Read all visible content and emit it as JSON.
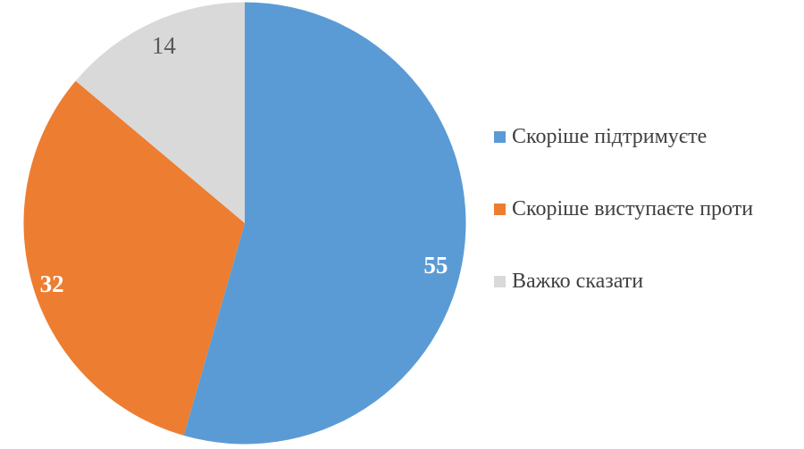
{
  "chart_data": {
    "type": "pie",
    "title": "",
    "categories": [
      "Скоріше підтримуєте",
      "Скоріше виступаєте проти",
      "Важко сказати"
    ],
    "values": [
      55,
      32,
      14
    ],
    "data_labels": [
      "55",
      "32",
      "14"
    ],
    "slice_colors": [
      "#5B9BD5",
      "#ED7D31",
      "#D9D9D9"
    ],
    "data_label_colors": [
      "#FFFFFF",
      "#FFFFFF",
      "#595959"
    ],
    "data_label_bold": [
      true,
      true,
      false
    ],
    "start_angle_deg": 0,
    "direction": "clockwise",
    "legend_position": "right",
    "legend_text_color": "#404040",
    "background_color": "#FFFFFF"
  },
  "legend": {
    "items": [
      {
        "label": "Скоріше підтримуєте",
        "color": "#5B9BD5"
      },
      {
        "label": "Скоріше виступаєте проти",
        "color": "#ED7D31"
      },
      {
        "label": "Важко сказати",
        "color": "#D9D9D9"
      }
    ]
  }
}
